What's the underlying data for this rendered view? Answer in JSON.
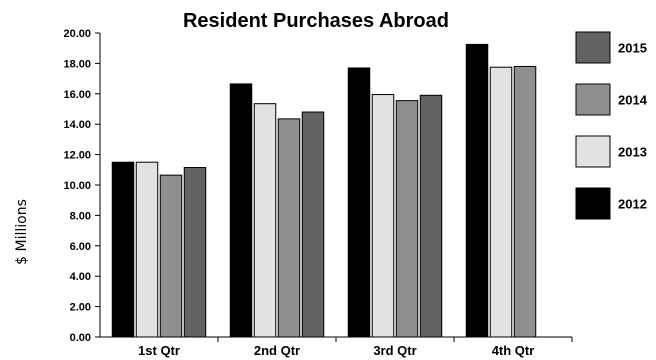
{
  "chart_data": {
    "type": "bar",
    "title": "Resident Purchases Abroad",
    "xlabel": "",
    "ylabel": "$ Millions",
    "ylim": [
      0,
      20
    ],
    "yticks": [
      "0.00",
      "2.00",
      "4.00",
      "6.00",
      "8.00",
      "10.00",
      "12.00",
      "14.00",
      "16.00",
      "18.00",
      "20.00"
    ],
    "categories": [
      "1st Qtr",
      "2nd Qtr",
      "3rd Qtr",
      "4th Qtr"
    ],
    "series": [
      {
        "name": "2012",
        "color": "#000000",
        "values": [
          11.5,
          16.65,
          17.7,
          19.25
        ]
      },
      {
        "name": "2013",
        "color": "#e2e2e2",
        "values": [
          11.5,
          15.35,
          15.95,
          17.75
        ]
      },
      {
        "name": "2014",
        "color": "#8f8f8f",
        "values": [
          10.65,
          14.35,
          15.55,
          17.8
        ]
      },
      {
        "name": "2015",
        "color": "#636363",
        "values": [
          11.15,
          14.8,
          15.9,
          null
        ]
      }
    ],
    "legend": {
      "position": "right",
      "order": [
        "2015",
        "2014",
        "2013",
        "2012"
      ]
    },
    "grid": false
  }
}
